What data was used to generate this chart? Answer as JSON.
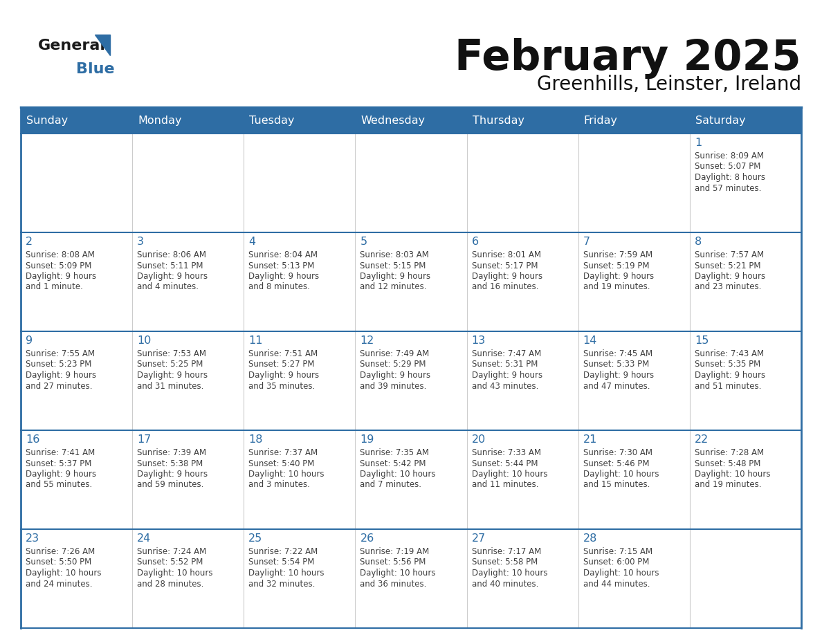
{
  "title": "February 2025",
  "subtitle": "Greenhills, Leinster, Ireland",
  "days_of_week": [
    "Sunday",
    "Monday",
    "Tuesday",
    "Wednesday",
    "Thursday",
    "Friday",
    "Saturday"
  ],
  "header_bg": "#2E6DA4",
  "header_text": "#FFFFFF",
  "cell_bg": "#FFFFFF",
  "border_color": "#2E6DA4",
  "separator_color": "#2E6DA4",
  "text_color": "#404040",
  "day_num_color": "#2E6DA4",
  "logo_color_general": "#1a1a1a",
  "logo_color_blue": "#2E6DA4",
  "logo_text_general": "General",
  "logo_text_blue": "Blue",
  "calendar_data": [
    [
      {
        "day": null,
        "info": ""
      },
      {
        "day": null,
        "info": ""
      },
      {
        "day": null,
        "info": ""
      },
      {
        "day": null,
        "info": ""
      },
      {
        "day": null,
        "info": ""
      },
      {
        "day": null,
        "info": ""
      },
      {
        "day": 1,
        "info": "Sunrise: 8:09 AM\nSunset: 5:07 PM\nDaylight: 8 hours\nand 57 minutes."
      }
    ],
    [
      {
        "day": 2,
        "info": "Sunrise: 8:08 AM\nSunset: 5:09 PM\nDaylight: 9 hours\nand 1 minute."
      },
      {
        "day": 3,
        "info": "Sunrise: 8:06 AM\nSunset: 5:11 PM\nDaylight: 9 hours\nand 4 minutes."
      },
      {
        "day": 4,
        "info": "Sunrise: 8:04 AM\nSunset: 5:13 PM\nDaylight: 9 hours\nand 8 minutes."
      },
      {
        "day": 5,
        "info": "Sunrise: 8:03 AM\nSunset: 5:15 PM\nDaylight: 9 hours\nand 12 minutes."
      },
      {
        "day": 6,
        "info": "Sunrise: 8:01 AM\nSunset: 5:17 PM\nDaylight: 9 hours\nand 16 minutes."
      },
      {
        "day": 7,
        "info": "Sunrise: 7:59 AM\nSunset: 5:19 PM\nDaylight: 9 hours\nand 19 minutes."
      },
      {
        "day": 8,
        "info": "Sunrise: 7:57 AM\nSunset: 5:21 PM\nDaylight: 9 hours\nand 23 minutes."
      }
    ],
    [
      {
        "day": 9,
        "info": "Sunrise: 7:55 AM\nSunset: 5:23 PM\nDaylight: 9 hours\nand 27 minutes."
      },
      {
        "day": 10,
        "info": "Sunrise: 7:53 AM\nSunset: 5:25 PM\nDaylight: 9 hours\nand 31 minutes."
      },
      {
        "day": 11,
        "info": "Sunrise: 7:51 AM\nSunset: 5:27 PM\nDaylight: 9 hours\nand 35 minutes."
      },
      {
        "day": 12,
        "info": "Sunrise: 7:49 AM\nSunset: 5:29 PM\nDaylight: 9 hours\nand 39 minutes."
      },
      {
        "day": 13,
        "info": "Sunrise: 7:47 AM\nSunset: 5:31 PM\nDaylight: 9 hours\nand 43 minutes."
      },
      {
        "day": 14,
        "info": "Sunrise: 7:45 AM\nSunset: 5:33 PM\nDaylight: 9 hours\nand 47 minutes."
      },
      {
        "day": 15,
        "info": "Sunrise: 7:43 AM\nSunset: 5:35 PM\nDaylight: 9 hours\nand 51 minutes."
      }
    ],
    [
      {
        "day": 16,
        "info": "Sunrise: 7:41 AM\nSunset: 5:37 PM\nDaylight: 9 hours\nand 55 minutes."
      },
      {
        "day": 17,
        "info": "Sunrise: 7:39 AM\nSunset: 5:38 PM\nDaylight: 9 hours\nand 59 minutes."
      },
      {
        "day": 18,
        "info": "Sunrise: 7:37 AM\nSunset: 5:40 PM\nDaylight: 10 hours\nand 3 minutes."
      },
      {
        "day": 19,
        "info": "Sunrise: 7:35 AM\nSunset: 5:42 PM\nDaylight: 10 hours\nand 7 minutes."
      },
      {
        "day": 20,
        "info": "Sunrise: 7:33 AM\nSunset: 5:44 PM\nDaylight: 10 hours\nand 11 minutes."
      },
      {
        "day": 21,
        "info": "Sunrise: 7:30 AM\nSunset: 5:46 PM\nDaylight: 10 hours\nand 15 minutes."
      },
      {
        "day": 22,
        "info": "Sunrise: 7:28 AM\nSunset: 5:48 PM\nDaylight: 10 hours\nand 19 minutes."
      }
    ],
    [
      {
        "day": 23,
        "info": "Sunrise: 7:26 AM\nSunset: 5:50 PM\nDaylight: 10 hours\nand 24 minutes."
      },
      {
        "day": 24,
        "info": "Sunrise: 7:24 AM\nSunset: 5:52 PM\nDaylight: 10 hours\nand 28 minutes."
      },
      {
        "day": 25,
        "info": "Sunrise: 7:22 AM\nSunset: 5:54 PM\nDaylight: 10 hours\nand 32 minutes."
      },
      {
        "day": 26,
        "info": "Sunrise: 7:19 AM\nSunset: 5:56 PM\nDaylight: 10 hours\nand 36 minutes."
      },
      {
        "day": 27,
        "info": "Sunrise: 7:17 AM\nSunset: 5:58 PM\nDaylight: 10 hours\nand 40 minutes."
      },
      {
        "day": 28,
        "info": "Sunrise: 7:15 AM\nSunset: 6:00 PM\nDaylight: 10 hours\nand 44 minutes."
      },
      {
        "day": null,
        "info": ""
      }
    ]
  ]
}
